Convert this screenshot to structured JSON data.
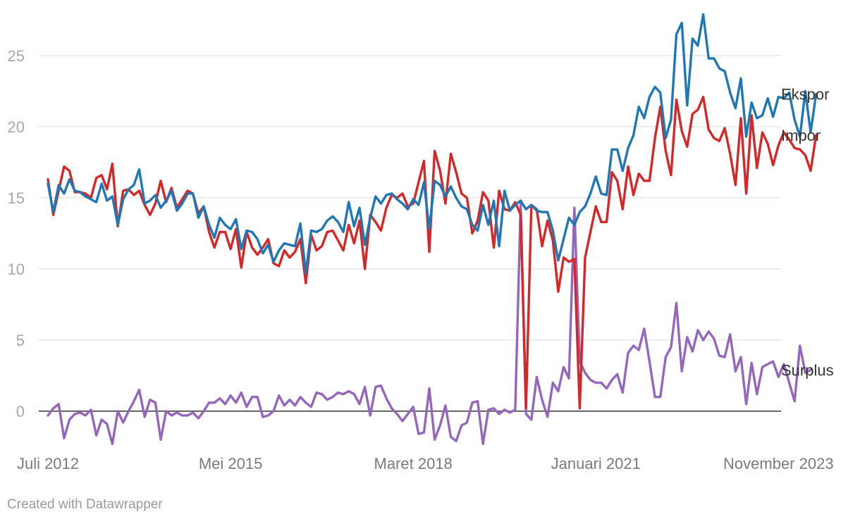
{
  "chart_data": {
    "type": "line",
    "ylim": [
      -2.5,
      27.5
    ],
    "yticks": [
      0,
      5,
      10,
      15,
      20,
      25
    ],
    "grid": true,
    "x_tick_labels": [
      "Juli 2012",
      "Mei 2015",
      "Maret 2018",
      "Januari 2021",
      "November 2023"
    ],
    "x_tick_index": [
      0,
      34,
      68,
      102,
      136
    ],
    "colors": {
      "Ekspor": "#1f77b4",
      "Impor": "#d62728",
      "Surplus": "#9467bd"
    },
    "series": [
      {
        "name": "Ekspor",
        "values": [
          16.0,
          14.0,
          15.9,
          15.3,
          16.3,
          15.5,
          15.4,
          15.1,
          14.9,
          14.7,
          16.0,
          14.8,
          15.1,
          13.1,
          14.9,
          15.6,
          15.9,
          17.0,
          14.6,
          14.8,
          15.2,
          14.3,
          14.8,
          15.5,
          14.1,
          14.6,
          15.3,
          15.3,
          13.6,
          14.4,
          13.1,
          12.2,
          13.6,
          13.1,
          12.8,
          13.5,
          11.4,
          12.7,
          12.6,
          12.1,
          11.1,
          11.7,
          10.5,
          11.3,
          11.8,
          11.7,
          11.6,
          13.2,
          9.7,
          12.7,
          12.6,
          12.8,
          13.4,
          13.7,
          13.3,
          12.6,
          14.7,
          13.0,
          14.3,
          11.7,
          13.6,
          15.1,
          14.6,
          15.2,
          15.3,
          14.9,
          14.6,
          14.2,
          14.9,
          14.5,
          16.1,
          12.8,
          16.2,
          15.9,
          15.1,
          15.8,
          15.0,
          14.4,
          14.2,
          13.1,
          12.7,
          14.5,
          13.1,
          14.8,
          11.6,
          15.5,
          14.1,
          14.5,
          14.8,
          14.2,
          14.5,
          14.1,
          14.0,
          14.0,
          12.7,
          10.6,
          12.1,
          13.6,
          13.1,
          14.0,
          14.4,
          15.3,
          16.5,
          15.3,
          15.2,
          18.4,
          18.4,
          16.9,
          18.5,
          19.4,
          21.4,
          20.6,
          22.1,
          22.8,
          22.4,
          19.2,
          20.5,
          26.5,
          27.3,
          21.5,
          26.2,
          25.7,
          27.9,
          24.8,
          24.8,
          24.1,
          23.9,
          22.4,
          21.3,
          23.4,
          19.3,
          21.7,
          20.6,
          20.8,
          22.0,
          20.7,
          22.1,
          22.0,
          22.4,
          20.5,
          19.3,
          22.5,
          19.6,
          22.3
        ]
      },
      {
        "name": "Impor",
        "values": [
          16.3,
          13.8,
          15.5,
          17.2,
          16.9,
          15.4,
          15.4,
          15.3,
          15.0,
          16.4,
          16.6,
          15.6,
          17.4,
          13.0,
          15.5,
          15.6,
          15.2,
          15.5,
          14.5,
          13.8,
          14.6,
          16.2,
          14.7,
          15.7,
          14.3,
          14.9,
          15.5,
          15.3,
          13.9,
          14.4,
          12.6,
          11.5,
          12.6,
          12.6,
          11.4,
          12.8,
          10.1,
          12.6,
          11.5,
          11.0,
          11.5,
          12.1,
          10.4,
          10.2,
          11.3,
          10.8,
          11.2,
          12.1,
          9.0,
          12.4,
          11.3,
          11.6,
          12.6,
          12.7,
          12.0,
          11.3,
          13.1,
          11.8,
          13.4,
          10.0,
          13.8,
          13.3,
          12.7,
          14.3,
          15.2,
          15.0,
          15.3,
          14.4,
          14.6,
          16.1,
          17.6,
          11.2,
          18.3,
          16.9,
          14.6,
          18.1,
          16.8,
          15.3,
          15.0,
          12.5,
          13.4,
          15.4,
          14.8,
          11.5,
          15.5,
          14.2,
          14.1,
          14.7,
          13.8,
          0.2,
          14.5,
          14.2,
          11.6,
          13.4,
          12.0,
          8.4,
          10.8,
          10.5,
          10.7,
          0.2,
          10.8,
          12.6,
          14.4,
          13.3,
          13.3,
          16.8,
          16.2,
          14.2,
          17.2,
          15.2,
          16.7,
          16.2,
          16.2,
          19.2,
          21.4,
          18.3,
          16.6,
          21.9,
          19.7,
          18.6,
          20.9,
          21.2,
          22.1,
          19.8,
          19.2,
          19.0,
          19.9,
          18.1,
          15.9,
          20.6,
          15.3,
          20.8,
          17.1,
          19.6,
          18.8,
          17.3,
          18.7,
          19.6,
          19.1,
          18.5,
          18.4,
          18.0,
          16.9,
          19.4
        ]
      },
      {
        "name": "Surplus",
        "values": [
          -0.3,
          0.2,
          0.5,
          -1.9,
          -0.6,
          -0.2,
          -0.1,
          -0.3,
          0.1,
          -1.7,
          -0.6,
          -0.9,
          -2.3,
          0.0,
          -0.8,
          0.0,
          0.7,
          1.5,
          -0.4,
          0.8,
          0.6,
          -2.0,
          0.0,
          -0.3,
          -0.1,
          -0.3,
          -0.3,
          -0.1,
          -0.5,
          0.0,
          0.6,
          0.6,
          0.9,
          0.5,
          1.1,
          0.6,
          1.3,
          0.3,
          1.0,
          1.0,
          -0.4,
          -0.3,
          0.0,
          1.1,
          0.4,
          0.8,
          0.4,
          1.0,
          0.6,
          0.3,
          1.3,
          1.2,
          0.8,
          1.0,
          1.3,
          1.2,
          1.4,
          1.2,
          0.5,
          1.7,
          -0.3,
          1.7,
          1.8,
          0.9,
          0.2,
          -0.2,
          -0.7,
          -0.2,
          0.3,
          -1.6,
          -1.5,
          1.6,
          -2.0,
          -1.0,
          0.4,
          -1.8,
          -2.1,
          -1.0,
          -0.8,
          0.6,
          0.7,
          -2.3,
          0.1,
          0.2,
          -0.2,
          0.1,
          -0.1,
          0.1,
          14.6,
          -0.2,
          -0.6,
          2.4,
          0.8,
          -0.4,
          2.0,
          1.4,
          3.1,
          2.3,
          14.3,
          3.5,
          2.7,
          2.2,
          2.0,
          2.0,
          1.6,
          2.2,
          2.6,
          1.3,
          4.1,
          4.6,
          4.3,
          5.8,
          3.5,
          1.0,
          1.0,
          3.8,
          4.5,
          7.6,
          2.8,
          5.2,
          4.2,
          5.7,
          5.0,
          5.6,
          5.1,
          3.9,
          3.8,
          5.4,
          2.8,
          3.8,
          0.5,
          3.4,
          1.2,
          3.1,
          3.3,
          3.5,
          2.4,
          3.3,
          2.0,
          0.7,
          4.6,
          2.7,
          2.9
        ]
      }
    ]
  },
  "footer": {
    "credit": "Created with Datawrapper"
  }
}
